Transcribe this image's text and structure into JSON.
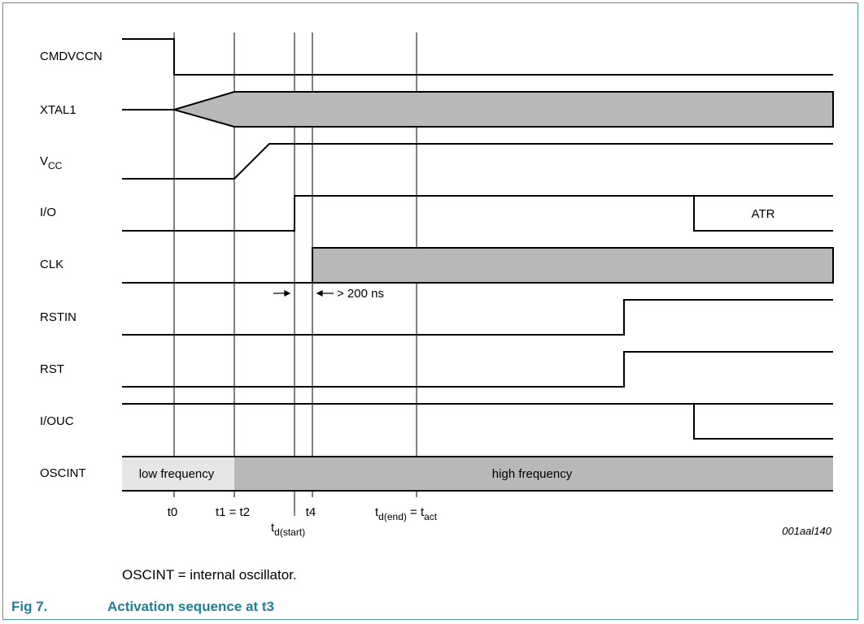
{
  "signals": {
    "cmdvccn": "CMDVCCN",
    "xtal1": "XTAL1",
    "vcc_main": "V",
    "vcc_sub": "CC",
    "io": "I/O",
    "clk": "CLK",
    "rstin": "RSTIN",
    "rst": "RST",
    "iouc": "I/OUC",
    "oscint": "OSCINT"
  },
  "annotations": {
    "atr": "ATR",
    "delay": "> 200 ns",
    "low_frequency": "low frequency",
    "high_frequency": "high frequency"
  },
  "time_marks": {
    "t0": "t0",
    "t1_t2": "t1 = t2",
    "td_start_main": "t",
    "td_start_sub": "d(start)",
    "t4": "t4",
    "td_end_main": "t",
    "td_end_sub": "d(end)",
    "td_end_eq": " = t",
    "td_end_act": "act"
  },
  "figure_id": "001aal140",
  "note": "OSCINT = internal oscillator.",
  "caption": {
    "number": "Fig 7.",
    "title": "Activation sequence at t3"
  },
  "colors": {
    "fill_gray": "#b8b8b8",
    "fill_light": "#e6e6e6",
    "caption": "#1e7f98",
    "frame": "#4a9aa8"
  }
}
